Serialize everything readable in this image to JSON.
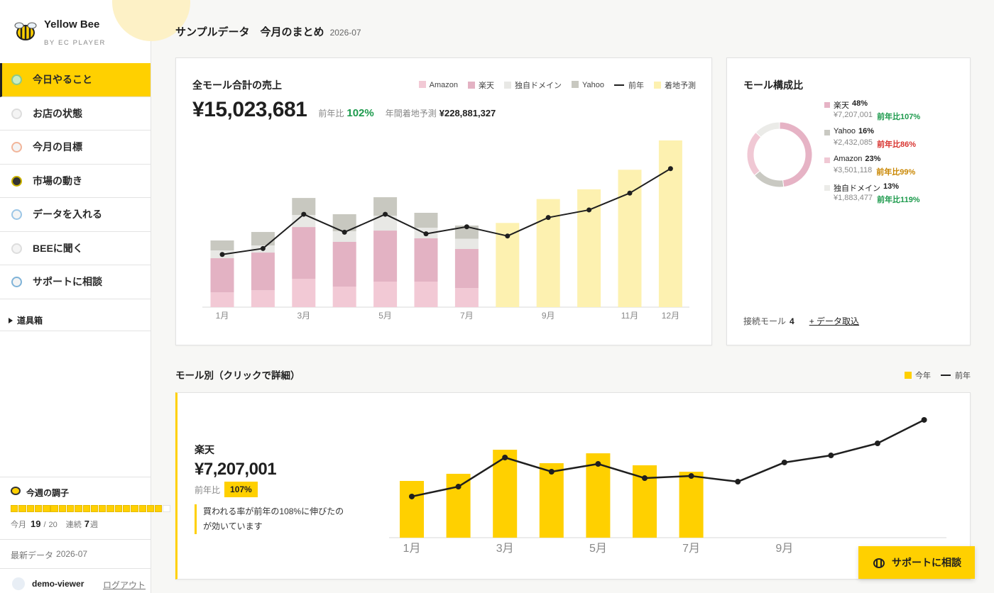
{
  "sidebar": {
    "brand": "Yellow Bee",
    "sub": "BY EC PLAYER",
    "nav": [
      "今日やること",
      "お店の状態",
      "今月の目標",
      "市場の動き",
      "データを入れる",
      "BEEに聞く",
      "サポートに相談"
    ],
    "toolbox": "道具箱",
    "weekly": {
      "title": "今週の調子",
      "month_label": "今月",
      "current": 19,
      "separator": "/",
      "total": 20,
      "streak_label": "連続",
      "streak": 7,
      "streak_unit": "週"
    },
    "latest": {
      "label": "最新データ",
      "value": "2026-07"
    },
    "user": "demo-viewer",
    "logout": "ログアウト"
  },
  "header": {
    "title": "サンプルデータ　今月のまとめ",
    "period": "2026-07"
  },
  "summary": {
    "title": "全モール合計の売上",
    "total": "¥15,023,681",
    "yoy_label": "前年比",
    "yoy": "102%",
    "forecast_label": "年間着地予測",
    "forecast": "¥228,881,327"
  },
  "composition": {
    "connected_label": "接続モール",
    "connected": "4",
    "import": "+ データ取込"
  },
  "mall_section": {
    "title": "モール別（クリックで詳細）",
    "mall": "楽天",
    "total": "¥7,207,001",
    "yoy_label": "前年比",
    "yoy": "107%",
    "note": "買われる率が前年の108%に伸びたのが効いています"
  },
  "support_button": "サポートに相談",
  "chart_data": [
    {
      "type": "bar",
      "stacked": true,
      "categories": [
        "1月",
        null,
        "3月",
        null,
        "5月",
        null,
        "7月",
        null,
        "9月",
        null,
        "11月",
        "12月"
      ],
      "series": [
        {
          "name": "Amazon",
          "color": "#f2c9d5",
          "values": [
            2740000,
            3130000,
            5220000,
            3790000,
            4700000,
            4700000,
            3501118,
            null,
            null,
            null,
            null,
            null
          ]
        },
        {
          "name": "楽天",
          "color": "#e3b2c3",
          "values": [
            6270000,
            6920000,
            9530000,
            8230000,
            9400000,
            7970000,
            7207001,
            null,
            null,
            null,
            null,
            null
          ]
        },
        {
          "name": "独自ドメイン",
          "color": "#e8e8e5",
          "values": [
            1440000,
            1310000,
            2220000,
            1960000,
            2740000,
            1960000,
            1883477,
            null,
            null,
            null,
            null,
            null
          ]
        },
        {
          "name": "Yahoo",
          "color": "#c8c8c0",
          "values": [
            1830000,
            2480000,
            3130000,
            3130000,
            3400000,
            2740000,
            2432085,
            null,
            null,
            null,
            null,
            null
          ]
        },
        {
          "name": "前年",
          "type": "line",
          "color": "#1f1f1f",
          "values": [
            9700000,
            10800000,
            17100000,
            13800000,
            17100000,
            13500000,
            14800000,
            13100000,
            16500000,
            17900000,
            21000000,
            25500000
          ]
        },
        {
          "name": "着地予測",
          "color": "#fdf1b0",
          "values": [
            null,
            null,
            null,
            null,
            null,
            null,
            null,
            15500000,
            19900000,
            21700000,
            25300000,
            30700000
          ]
        }
      ],
      "ylim": [
        0,
        32000000
      ]
    },
    {
      "type": "pie",
      "title": "モール構成比",
      "categories": [
        "楽天",
        "Yahoo",
        "Amazon",
        "独自ドメイン"
      ],
      "values": [
        48,
        16,
        23,
        13
      ],
      "value_labels": [
        "48%",
        "16%",
        "23%",
        "13%"
      ],
      "colors": [
        "#e6b3c5",
        "#c9c9c2",
        "#f0c8d4",
        "#ebebe8"
      ],
      "amounts": [
        "¥7,207,001",
        "¥2,432,085",
        "¥3,501,118",
        "¥1,883,477"
      ],
      "yoy": [
        "前年比107%",
        "前年比86%",
        "前年比99%",
        "前年比119%"
      ],
      "yoy_colors": [
        "#1c9a4c",
        "#d8332f",
        "#c98600",
        "#1c9a4c"
      ]
    },
    {
      "type": "bar",
      "stacked": false,
      "categories": [
        "1月",
        null,
        "3月",
        null,
        "5月",
        null,
        "7月",
        null,
        "9月",
        null,
        null,
        null
      ],
      "series": [
        {
          "name": "今年",
          "color": "#ffd000",
          "values": [
            6200000,
            6980000,
            9610000,
            8140000,
            9220000,
            7910000,
            7207001,
            null,
            null,
            null,
            null,
            null
          ]
        },
        {
          "name": "前年",
          "type": "line",
          "color": "#1f1f1f",
          "values": [
            4500000,
            5580000,
            8760000,
            7210000,
            8060000,
            6510000,
            6740000,
            6120000,
            8220000,
            8990000,
            10310000,
            12870000
          ]
        }
      ],
      "ylim": [
        0,
        14000000
      ]
    }
  ]
}
